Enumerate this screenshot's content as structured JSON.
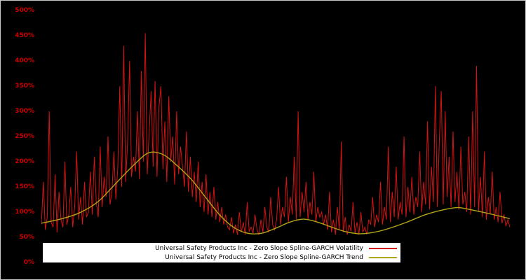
{
  "chart_data": {
    "type": "line",
    "title": "",
    "xlabel": "",
    "ylabel": "",
    "background_color": "#000000",
    "grid": false,
    "ylim": [
      0,
      500
    ],
    "ytick_values": [
      0,
      50,
      100,
      150,
      200,
      250,
      300,
      350,
      400,
      450,
      500
    ],
    "ytick_labels": [
      "0%",
      "50%",
      "100%",
      "150%",
      "200%",
      "250%",
      "300%",
      "350%",
      "400%",
      "450%",
      "500%"
    ],
    "ytick_color": "#cc0000",
    "legend_position": "bottom-center",
    "legend_background": "#ffffff",
    "series": [
      {
        "name": "Universal Safety Products Inc - Zero Slope Spline-GARCH Volatility",
        "color": "#d41414",
        "style": "spiky-line",
        "x_range": [
          0,
          1
        ],
        "values": [
          75,
          160,
          65,
          90,
          300,
          80,
          70,
          175,
          60,
          140,
          85,
          70,
          200,
          75,
          95,
          150,
          70,
          110,
          220,
          85,
          130,
          75,
          160,
          90,
          100,
          180,
          95,
          210,
          120,
          90,
          230,
          110,
          170,
          130,
          250,
          115,
          140,
          220,
          125,
          190,
          350,
          150,
          430,
          160,
          240,
          400,
          170,
          210,
          180,
          300,
          165,
          380,
          200,
          455,
          175,
          260,
          340,
          190,
          360,
          170,
          310,
          350,
          185,
          280,
          160,
          330,
          200,
          250,
          155,
          300,
          175,
          230,
          190,
          150,
          260,
          140,
          210,
          130,
          180,
          120,
          200,
          110,
          160,
          100,
          175,
          95,
          140,
          90,
          150,
          85,
          120,
          80,
          110,
          75,
          95,
          70,
          65,
          90,
          58,
          75,
          55,
          100,
          60,
          80,
          55,
          120,
          62,
          70,
          58,
          95,
          65,
          55,
          85,
          60,
          110,
          70,
          60,
          130,
          75,
          65,
          85,
          150,
          75,
          110,
          90,
          170,
          80,
          130,
          95,
          210,
          85,
          300,
          90,
          140,
          100,
          160,
          85,
          120,
          95,
          180,
          80,
          110,
          90,
          100,
          75,
          95,
          65,
          140,
          60,
          85,
          55,
          110,
          65,
          240,
          60,
          90,
          55,
          75,
          62,
          120,
          58,
          80,
          55,
          100,
          60,
          70,
          56,
          85,
          75,
          130,
          70,
          95,
          80,
          160,
          75,
          110,
          85,
          230,
          80,
          140,
          90,
          190,
          85,
          120,
          95,
          250,
          90,
          150,
          100,
          170,
          95,
          130,
          110,
          220,
          100,
          160,
          115,
          280,
          105,
          190,
          120,
          350,
          110,
          240,
          340,
          115,
          300,
          130,
          210,
          110,
          260,
          120,
          180,
          105,
          230,
          115,
          140,
          100,
          250,
          95,
          300,
          110,
          390,
          100,
          170,
          90,
          220,
          85,
          130,
          95,
          180,
          85,
          110,
          80,
          140,
          78,
          95,
          72,
          85,
          70
        ]
      },
      {
        "name": "Universal Safety Products Inc - Zero Slope Spline-GARCH Trend",
        "color": "#b3a418",
        "style": "smooth-line",
        "points": [
          [
            0.0,
            78
          ],
          [
            0.04,
            86
          ],
          [
            0.08,
            98
          ],
          [
            0.12,
            120
          ],
          [
            0.16,
            158
          ],
          [
            0.2,
            196
          ],
          [
            0.23,
            218
          ],
          [
            0.26,
            214
          ],
          [
            0.29,
            192
          ],
          [
            0.32,
            165
          ],
          [
            0.35,
            130
          ],
          [
            0.38,
            95
          ],
          [
            0.41,
            70
          ],
          [
            0.44,
            58
          ],
          [
            0.47,
            58
          ],
          [
            0.5,
            68
          ],
          [
            0.53,
            80
          ],
          [
            0.56,
            86
          ],
          [
            0.59,
            80
          ],
          [
            0.62,
            70
          ],
          [
            0.65,
            61
          ],
          [
            0.68,
            57
          ],
          [
            0.71,
            60
          ],
          [
            0.74,
            67
          ],
          [
            0.78,
            80
          ],
          [
            0.82,
            95
          ],
          [
            0.86,
            105
          ],
          [
            0.89,
            109
          ],
          [
            0.92,
            104
          ],
          [
            0.96,
            96
          ],
          [
            1.0,
            87
          ]
        ]
      }
    ]
  }
}
